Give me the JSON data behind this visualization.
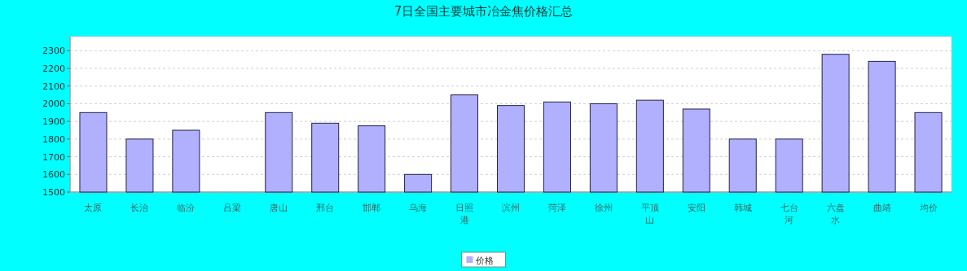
{
  "chart_data": {
    "type": "bar",
    "title": "7日全国主要城市冶金焦价格汇总",
    "categories": [
      "太原",
      "长治",
      "临汾",
      "吕梁",
      "唐山",
      "邢台",
      "邯郸",
      "乌海",
      "日照港",
      "滨州",
      "菏泽",
      "徐州",
      "平顶山",
      "安阳",
      "韩城",
      "七台河",
      "六盘水",
      "曲靖",
      "均价"
    ],
    "series": [
      {
        "name": "价格",
        "color": "#b0b0ff",
        "values": [
          1950,
          1800,
          1850,
          null,
          1950,
          1890,
          1875,
          1600,
          2050,
          1990,
          2010,
          2000,
          2020,
          1970,
          1800,
          1800,
          2280,
          2240,
          1950
        ]
      }
    ],
    "ylim": [
      1500,
      2380
    ],
    "yticks": [
      1500,
      1600,
      1700,
      1800,
      1900,
      2000,
      2100,
      2200,
      2300
    ],
    "grid": "y",
    "legend": "bottom"
  }
}
